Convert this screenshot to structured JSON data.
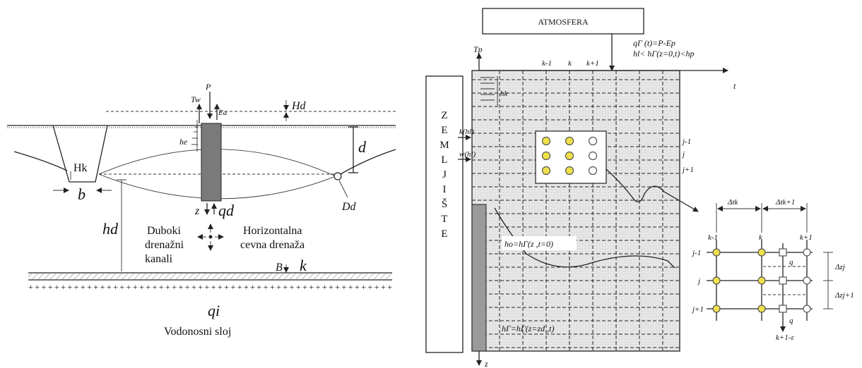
{
  "left": {
    "labels": {
      "Tw": "Tw",
      "P": "P",
      "Ea": "Ea",
      "Hd": "Hd",
      "he": "he",
      "d": "d",
      "Hk": "Hk",
      "b": "b",
      "Dd": "Dd",
      "z": "z",
      "qd": "qd",
      "hd": "hd",
      "B": "B",
      "k": "k",
      "qi": "qi"
    },
    "text_left_lines": [
      "Duboki",
      "drenažni",
      "kanali"
    ],
    "text_right_lines": [
      "Horizontalna",
      "cevna drenaža"
    ],
    "aquifer": "Vodonosni sloj"
  },
  "right": {
    "atmosphere": "ATMOSFERA",
    "soil_letters": [
      "Z",
      "E",
      "M",
      "L",
      "J",
      "I",
      "Š",
      "T",
      "E"
    ],
    "boundary_top_1": "qΓ (t)=P-Ep",
    "boundary_top_2": "hl< hΓ(z=0,t)<hp",
    "Tp": "Tp",
    "t_axis": "t",
    "z_axis": "z",
    "k_of_h": "k(hl)",
    "w_of_h": "w(hl)",
    "hk_label": "hk",
    "col_labels": [
      "k-1",
      "k",
      "k+1"
    ],
    "row_labels": [
      "j-1",
      "j",
      "j+1"
    ],
    "initial": "ho=hΓ(z ,t=0)",
    "bottom": "hΓ=hΓ(z=zd ,t)",
    "detail": {
      "dt_k": "Δtk",
      "dt_k1": "Δtk+1",
      "cols": [
        "k-1",
        "k",
        "k+1"
      ],
      "rows": [
        "j-1",
        "j",
        "j+1"
      ],
      "dz_j": "Δzj",
      "dz_j1": "Δzj+1",
      "q1": "q",
      "q2": "q",
      "k_bottom": "k+1-ε"
    }
  }
}
